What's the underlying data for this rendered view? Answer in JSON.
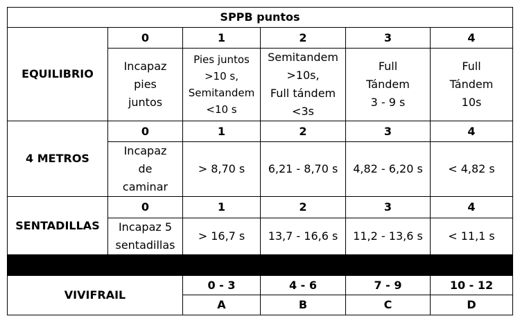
{
  "title": "SPPB puntos",
  "score_headers": [
    "0",
    "1",
    "2",
    "3",
    "4"
  ],
  "equilibrio": {
    "label": "EQUILIBRIO",
    "cells": [
      "Incapaz\npies\njuntos",
      "Pies juntos\n>10 s,\nSemitandem\n<10 s",
      "Semitandem\n>10s,\nFull tándem\n<3s",
      "Full\nTándem\n3 - 9 s",
      "Full\nTándem\n10s"
    ]
  },
  "metros": {
    "label": "4 METROS",
    "cells": [
      "Incapaz\nde\ncaminar",
      "> 8,70 s",
      "6,21 - 8,70 s",
      "4,82 - 6,20 s",
      "< 4,82 s"
    ]
  },
  "sentadillas": {
    "label": "SENTADILLAS",
    "cells": [
      "Incapaz 5\nsentadillas",
      "> 16,7 s",
      "13,7 - 16,6 s",
      "11,2 - 13,6 s",
      "< 11,1 s"
    ]
  },
  "vivifrail": {
    "label": "VIVIFRAIL",
    "ranges": [
      "0 - 3",
      "4 - 6",
      "7 - 9",
      "10 - 12"
    ],
    "grades": [
      "A",
      "B",
      "C",
      "D"
    ]
  }
}
